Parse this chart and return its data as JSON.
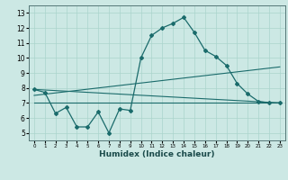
{
  "title": "",
  "xlabel": "Humidex (Indice chaleur)",
  "ylabel": "",
  "bg_color": "#cce8e4",
  "grid_color": "#aad4cc",
  "line_color": "#1a6b6b",
  "marker_color": "#1a6b6b",
  "xlim": [
    -0.5,
    23.5
  ],
  "ylim": [
    4.5,
    13.5
  ],
  "xticks": [
    0,
    1,
    2,
    3,
    4,
    5,
    6,
    7,
    8,
    9,
    10,
    11,
    12,
    13,
    14,
    15,
    16,
    17,
    18,
    19,
    20,
    21,
    22,
    23
  ],
  "yticks": [
    5,
    6,
    7,
    8,
    9,
    10,
    11,
    12,
    13
  ],
  "line1_x": [
    0,
    1,
    2,
    3,
    4,
    5,
    6,
    7,
    8,
    9,
    10,
    11,
    12,
    13,
    14,
    15,
    16,
    17,
    18,
    19,
    20,
    21,
    22,
    23
  ],
  "line1_y": [
    7.9,
    7.7,
    6.3,
    6.7,
    5.4,
    5.4,
    6.4,
    5.0,
    6.6,
    6.5,
    10.0,
    11.5,
    12.0,
    12.3,
    12.7,
    11.7,
    10.5,
    10.1,
    9.5,
    8.3,
    7.6,
    7.1,
    7.0,
    7.0
  ],
  "line2_x": [
    0,
    23
  ],
  "line2_y": [
    7.9,
    7.0
  ],
  "line3_x": [
    0,
    23
  ],
  "line3_y": [
    7.5,
    9.4
  ],
  "line4_x": [
    0,
    23
  ],
  "line4_y": [
    7.0,
    7.0
  ]
}
